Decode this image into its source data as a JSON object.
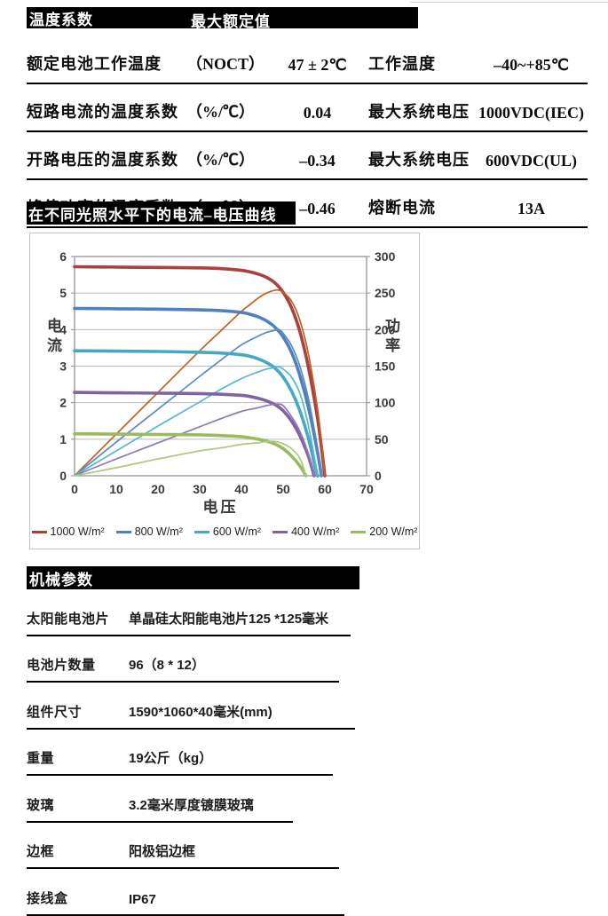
{
  "spec_table": {
    "header": {
      "col1": "温度系数",
      "col2": "最大额定值"
    },
    "rows": [
      {
        "label": "额定电池工作温度",
        "unit": "（NOCT）",
        "value": "47 ± 2℃",
        "label2": "工作温度",
        "value2": "–40~+85℃"
      },
      {
        "label": "短路电流的温度系数",
        "unit": "（%/℃）",
        "value": "0.04",
        "label2": "最大系统电压",
        "value2": "1000VDC(IEC)"
      },
      {
        "label": "开路电压的温度系数",
        "unit": "（%/℃）",
        "value": "–0.34",
        "label2": "最大系统电压",
        "value2": "600VDC(UL)"
      },
      {
        "label": "峰值功率的温度系数",
        "unit": "（%/℃）",
        "value": "–0.46",
        "label2": "熔断电流",
        "value2": "13A"
      }
    ]
  },
  "chart_section": {
    "title": "在不同光照水平下的电流–电压曲线"
  },
  "chart_data": {
    "type": "line",
    "title": "在不同光照水平下的电流–电压曲线",
    "xlabel": "电压",
    "ylabel_left": "电流",
    "ylabel_right": "功率",
    "xlim": [
      0,
      70
    ],
    "ylim_left": [
      0,
      6
    ],
    "ylim_right": [
      0,
      300
    ],
    "x_ticks": [
      0,
      10,
      20,
      30,
      40,
      50,
      60,
      70
    ],
    "y_ticks_left": [
      0,
      1,
      2,
      3,
      4,
      5,
      6
    ],
    "y_ticks_right": [
      0,
      50,
      100,
      150,
      200,
      250,
      300
    ],
    "grid": "horizontal",
    "legend_position": "bottom",
    "legend": [
      {
        "label": "1000 W/m²",
        "color": "#a9423e"
      },
      {
        "label": "800 W/m²",
        "color": "#4f81bd"
      },
      {
        "label": "600 W/m²",
        "color": "#45a9c3"
      },
      {
        "label": "400 W/m²",
        "color": "#7f64a2"
      },
      {
        "label": "200 W/m²",
        "color": "#9cba5d"
      }
    ],
    "series": [
      {
        "name": "1000 W/m²",
        "role": "IV",
        "axis": "left",
        "color": "#a9423e",
        "width": 3.6,
        "points": [
          [
            0,
            5.72
          ],
          [
            10,
            5.71
          ],
          [
            20,
            5.7
          ],
          [
            30,
            5.69
          ],
          [
            35,
            5.67
          ],
          [
            40,
            5.62
          ],
          [
            42,
            5.58
          ],
          [
            44,
            5.52
          ],
          [
            46,
            5.43
          ],
          [
            48,
            5.28
          ],
          [
            50,
            5.02
          ],
          [
            52,
            4.6
          ],
          [
            54,
            3.95
          ],
          [
            56,
            3.0
          ],
          [
            58,
            1.75
          ],
          [
            59,
            0.95
          ],
          [
            60,
            0
          ]
        ]
      },
      {
        "name": "1000 W/m²",
        "role": "P-V",
        "axis": "right",
        "color": "#bc6322",
        "width": 1.7,
        "points": [
          [
            0,
            0
          ],
          [
            10,
            57
          ],
          [
            20,
            114
          ],
          [
            30,
            171
          ],
          [
            35,
            198
          ],
          [
            40,
            225
          ],
          [
            42,
            234
          ],
          [
            44,
            243
          ],
          [
            46,
            250
          ],
          [
            48,
            254
          ],
          [
            49,
            254
          ],
          [
            50,
            251
          ],
          [
            52,
            239
          ],
          [
            54,
            213
          ],
          [
            56,
            168
          ],
          [
            58,
            101
          ],
          [
            59,
            56
          ],
          [
            60,
            0
          ]
        ]
      },
      {
        "name": "800 W/m²",
        "role": "IV",
        "axis": "left",
        "color": "#4f81bd",
        "width": 3.6,
        "points": [
          [
            0,
            4.58
          ],
          [
            10,
            4.57
          ],
          [
            20,
            4.56
          ],
          [
            30,
            4.54
          ],
          [
            35,
            4.52
          ],
          [
            40,
            4.47
          ],
          [
            42,
            4.42
          ],
          [
            44,
            4.35
          ],
          [
            46,
            4.24
          ],
          [
            48,
            4.07
          ],
          [
            50,
            3.8
          ],
          [
            52,
            3.38
          ],
          [
            54,
            2.75
          ],
          [
            56,
            1.9
          ],
          [
            58,
            0.8
          ],
          [
            59.2,
            0
          ]
        ]
      },
      {
        "name": "800 W/m²",
        "role": "P-V",
        "axis": "right",
        "color": "#5c8ac0",
        "width": 1.7,
        "points": [
          [
            0,
            0
          ],
          [
            10,
            46
          ],
          [
            20,
            91
          ],
          [
            30,
            136
          ],
          [
            35,
            158
          ],
          [
            40,
            179
          ],
          [
            44,
            191
          ],
          [
            46,
            196
          ],
          [
            48,
            199
          ],
          [
            49,
            200
          ],
          [
            50,
            195
          ],
          [
            52,
            178
          ],
          [
            54,
            150
          ],
          [
            56,
            107
          ],
          [
            58,
            46
          ],
          [
            59.2,
            0
          ]
        ]
      },
      {
        "name": "600 W/m²",
        "role": "IV",
        "axis": "left",
        "color": "#45a9c3",
        "width": 3.6,
        "points": [
          [
            0,
            3.42
          ],
          [
            10,
            3.41
          ],
          [
            20,
            3.4
          ],
          [
            30,
            3.38
          ],
          [
            35,
            3.36
          ],
          [
            40,
            3.31
          ],
          [
            42,
            3.27
          ],
          [
            44,
            3.2
          ],
          [
            46,
            3.1
          ],
          [
            48,
            2.95
          ],
          [
            50,
            2.7
          ],
          [
            52,
            2.32
          ],
          [
            54,
            1.78
          ],
          [
            56,
            1.05
          ],
          [
            58,
            0.1
          ],
          [
            58.3,
            0
          ]
        ]
      },
      {
        "name": "600 W/m²",
        "role": "P-V",
        "axis": "right",
        "color": "#55b7cf",
        "width": 1.7,
        "points": [
          [
            0,
            0
          ],
          [
            10,
            34
          ],
          [
            20,
            68
          ],
          [
            30,
            101
          ],
          [
            35,
            118
          ],
          [
            40,
            133
          ],
          [
            44,
            142
          ],
          [
            46,
            146
          ],
          [
            48,
            148
          ],
          [
            49,
            149
          ],
          [
            50,
            146
          ],
          [
            52,
            135
          ],
          [
            54,
            113
          ],
          [
            56,
            70
          ],
          [
            58,
            9
          ],
          [
            58.3,
            0
          ]
        ]
      },
      {
        "name": "400 W/m²",
        "role": "IV",
        "axis": "left",
        "color": "#7f64a2",
        "width": 3.6,
        "points": [
          [
            0,
            2.28
          ],
          [
            10,
            2.27
          ],
          [
            20,
            2.26
          ],
          [
            30,
            2.25
          ],
          [
            35,
            2.23
          ],
          [
            40,
            2.2
          ],
          [
            42,
            2.17
          ],
          [
            44,
            2.12
          ],
          [
            46,
            2.05
          ],
          [
            48,
            1.95
          ],
          [
            50,
            1.78
          ],
          [
            52,
            1.5
          ],
          [
            54,
            1.1
          ],
          [
            56,
            0.55
          ],
          [
            57.4,
            0
          ]
        ]
      },
      {
        "name": "400 W/m²",
        "role": "P-V",
        "axis": "right",
        "color": "#9079b5",
        "width": 1.7,
        "points": [
          [
            0,
            0
          ],
          [
            10,
            23
          ],
          [
            20,
            45
          ],
          [
            30,
            67
          ],
          [
            35,
            78
          ],
          [
            40,
            88
          ],
          [
            44,
            93
          ],
          [
            46,
            96
          ],
          [
            48,
            98
          ],
          [
            49,
            98
          ],
          [
            50,
            96
          ],
          [
            52,
            81
          ],
          [
            54,
            61
          ],
          [
            56,
            31
          ],
          [
            57.4,
            0
          ]
        ]
      },
      {
        "name": "200 W/m²",
        "role": "IV",
        "axis": "left",
        "color": "#9cba5d",
        "width": 3.6,
        "points": [
          [
            0,
            1.15
          ],
          [
            10,
            1.14
          ],
          [
            20,
            1.13
          ],
          [
            30,
            1.12
          ],
          [
            35,
            1.1
          ],
          [
            40,
            1.07
          ],
          [
            42,
            1.04
          ],
          [
            44,
            1.0
          ],
          [
            46,
            0.95
          ],
          [
            48,
            0.87
          ],
          [
            50,
            0.74
          ],
          [
            52,
            0.54
          ],
          [
            54,
            0.27
          ],
          [
            55.5,
            0
          ]
        ]
      },
      {
        "name": "200 W/m²",
        "role": "P-V",
        "axis": "right",
        "color": "#adc979",
        "width": 1.7,
        "points": [
          [
            0,
            0
          ],
          [
            10,
            11
          ],
          [
            20,
            23
          ],
          [
            30,
            34
          ],
          [
            35,
            38
          ],
          [
            40,
            43
          ],
          [
            44,
            45
          ],
          [
            46,
            47
          ],
          [
            47,
            47
          ],
          [
            48,
            47
          ],
          [
            50,
            44
          ],
          [
            52,
            37
          ],
          [
            54,
            24
          ],
          [
            55.5,
            0
          ]
        ]
      }
    ]
  },
  "mech_section": {
    "title": "机械参数",
    "rows": [
      {
        "label": "太阳能电池片",
        "value": "单晶硅太阳能电池片125 *125毫米"
      },
      {
        "label": "电池片数量",
        "value": "96（8 * 12）"
      },
      {
        "label": "组件尺寸",
        "value": "1590*1060*40毫米(mm)"
      },
      {
        "label": "重量",
        "value": "19公斤（kg）"
      },
      {
        "label": "玻璃",
        "value": "3.2毫米厚度镀膜玻璃"
      },
      {
        "label": "边框",
        "value": "阳极铝边框"
      },
      {
        "label": "接线盒",
        "value": "IP67"
      }
    ]
  }
}
